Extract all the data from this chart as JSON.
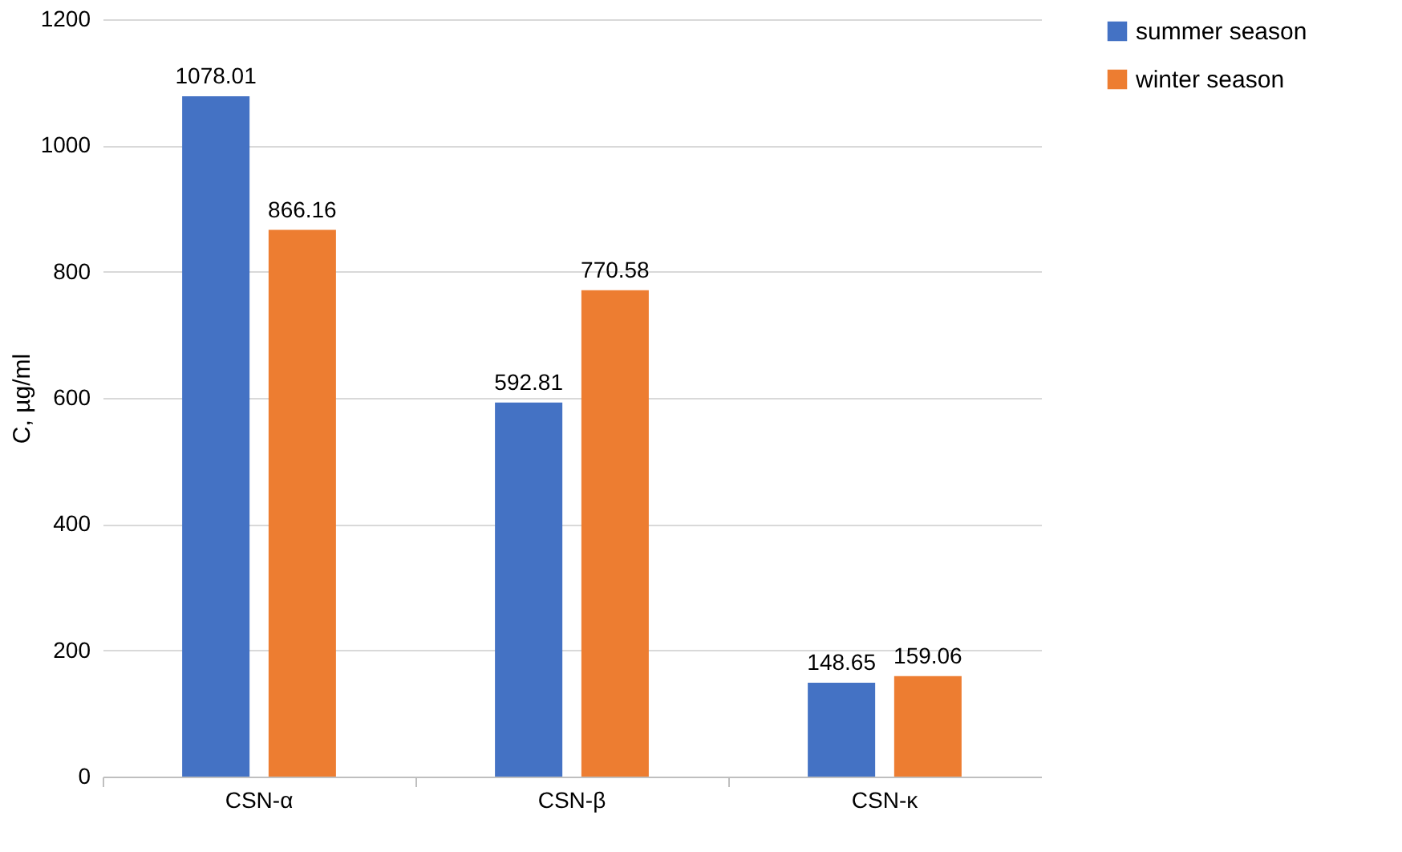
{
  "chart_data": {
    "type": "bar",
    "ylabel": "C, µg/ml",
    "categories": [
      "CSN-α",
      "CSN-β",
      "CSN-κ"
    ],
    "series": [
      {
        "name": "summer season",
        "color": "#4472c4",
        "values": [
          1078.01,
          592.81,
          148.65
        ]
      },
      {
        "name": "winter season",
        "color": "#ed7d31",
        "values": [
          866.16,
          770.58,
          159.06
        ]
      }
    ],
    "ylim": [
      0,
      1200
    ],
    "yticks": [
      0,
      200,
      400,
      600,
      800,
      1000,
      1200
    ],
    "grid": "y",
    "legend": "right",
    "data_labels": true
  }
}
